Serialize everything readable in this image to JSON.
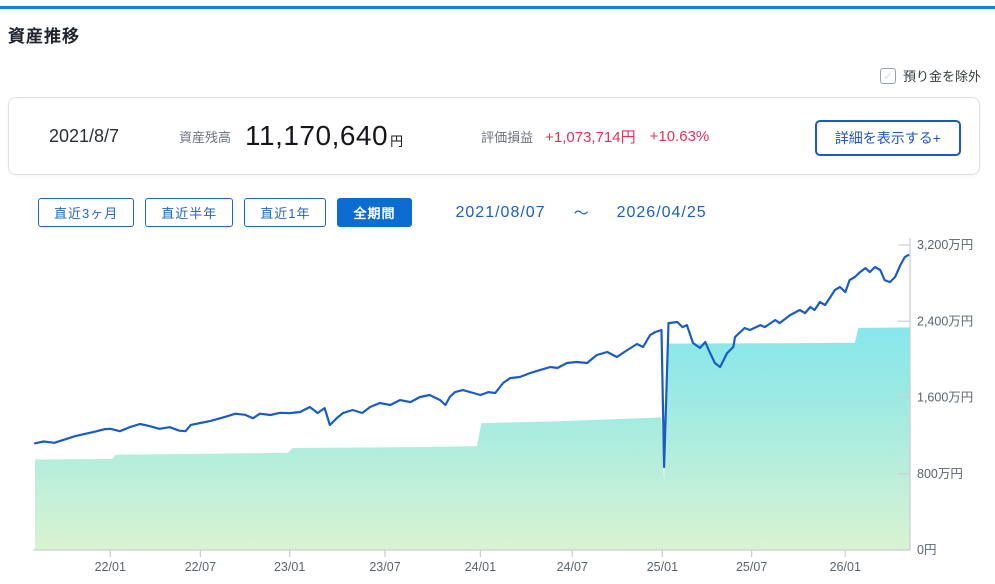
{
  "page": {
    "title": "資産推移"
  },
  "filter": {
    "label": "預り金を除外",
    "checked": false,
    "check_glyph": "✓"
  },
  "summary": {
    "date": "2021/8/7",
    "balance_label": "資産残高",
    "balance_value": "11,170,640",
    "balance_unit": "円",
    "pl_label": "評価損益",
    "pl_amount": "+1,073,714円",
    "pl_percent": "+10.63%",
    "detail_button_label": "詳細を表示する+"
  },
  "period": {
    "buttons": [
      {
        "label": "直近3ヶ月",
        "selected": false
      },
      {
        "label": "直近半年",
        "selected": false
      },
      {
        "label": "直近1年",
        "selected": false
      },
      {
        "label": "全期間",
        "selected": true
      }
    ],
    "range_start": "2021/08/07",
    "range_separator": "～",
    "range_end": "2026/04/25"
  },
  "colors": {
    "accent_blue": "#0d6cd0",
    "link_blue": "#1b5fc0",
    "loss_gain_red": "#e03358",
    "top_bar_blue": "#1f7fd4"
  },
  "chart_data": {
    "type": "area",
    "title": "資産推移",
    "xlabel": "",
    "ylabel": "円",
    "ylim": [
      0,
      3200
    ],
    "unit": "万円",
    "grid": false,
    "legend": "none",
    "style": {
      "line": "#1a5cc4",
      "area_top": "#74e3f7",
      "area_mid": "#96e9e4",
      "area_bottom": "#d9f3d2",
      "axis": "#c9cdd6",
      "tick_text": "#5a6470"
    },
    "x_ticks": [
      {
        "label": "22/01",
        "f": 0.086
      },
      {
        "label": "22/07",
        "f": 0.189
      },
      {
        "label": "23/01",
        "f": 0.291
      },
      {
        "label": "23/07",
        "f": 0.4
      },
      {
        "label": "24/01",
        "f": 0.509
      },
      {
        "label": "24/07",
        "f": 0.614
      },
      {
        "label": "25/01",
        "f": 0.717
      },
      {
        "label": "25/07",
        "f": 0.819
      },
      {
        "label": "26/01",
        "f": 0.926
      }
    ],
    "y_ticks": [
      {
        "label": "0円",
        "v": 0
      },
      {
        "label": "800万円",
        "v": 800
      },
      {
        "label": "1,600万円",
        "v": 1600
      },
      {
        "label": "2,400万円",
        "v": 2400
      },
      {
        "label": "3,200万円",
        "v": 3200
      }
    ],
    "series": [
      {
        "id": "asset_value_line",
        "points": [
          [
            0.0,
            1120
          ],
          [
            0.01,
            1138
          ],
          [
            0.022,
            1125
          ],
          [
            0.034,
            1160
          ],
          [
            0.046,
            1195
          ],
          [
            0.057,
            1218
          ],
          [
            0.069,
            1242
          ],
          [
            0.08,
            1268
          ],
          [
            0.086,
            1272
          ],
          [
            0.097,
            1246
          ],
          [
            0.109,
            1292
          ],
          [
            0.12,
            1322
          ],
          [
            0.131,
            1300
          ],
          [
            0.142,
            1272
          ],
          [
            0.154,
            1288
          ],
          [
            0.165,
            1252
          ],
          [
            0.172,
            1246
          ],
          [
            0.178,
            1312
          ],
          [
            0.189,
            1332
          ],
          [
            0.2,
            1352
          ],
          [
            0.217,
            1396
          ],
          [
            0.229,
            1430
          ],
          [
            0.24,
            1418
          ],
          [
            0.249,
            1382
          ],
          [
            0.257,
            1430
          ],
          [
            0.269,
            1416
          ],
          [
            0.28,
            1440
          ],
          [
            0.291,
            1436
          ],
          [
            0.303,
            1448
          ],
          [
            0.314,
            1500
          ],
          [
            0.323,
            1437
          ],
          [
            0.331,
            1489
          ],
          [
            0.337,
            1311
          ],
          [
            0.345,
            1385
          ],
          [
            0.352,
            1437
          ],
          [
            0.363,
            1469
          ],
          [
            0.374,
            1437
          ],
          [
            0.383,
            1500
          ],
          [
            0.394,
            1542
          ],
          [
            0.406,
            1521
          ],
          [
            0.417,
            1573
          ],
          [
            0.429,
            1552
          ],
          [
            0.44,
            1605
          ],
          [
            0.451,
            1626
          ],
          [
            0.463,
            1573
          ],
          [
            0.469,
            1521
          ],
          [
            0.474,
            1605
          ],
          [
            0.48,
            1657
          ],
          [
            0.489,
            1678
          ],
          [
            0.501,
            1647
          ],
          [
            0.509,
            1626
          ],
          [
            0.518,
            1657
          ],
          [
            0.526,
            1647
          ],
          [
            0.535,
            1752
          ],
          [
            0.543,
            1804
          ],
          [
            0.554,
            1815
          ],
          [
            0.566,
            1857
          ],
          [
            0.577,
            1888
          ],
          [
            0.589,
            1920
          ],
          [
            0.597,
            1909
          ],
          [
            0.608,
            1962
          ],
          [
            0.619,
            1972
          ],
          [
            0.631,
            1962
          ],
          [
            0.642,
            2046
          ],
          [
            0.654,
            2077
          ],
          [
            0.665,
            2025
          ],
          [
            0.677,
            2098
          ],
          [
            0.688,
            2161
          ],
          [
            0.695,
            2130
          ],
          [
            0.703,
            2255
          ],
          [
            0.709,
            2287
          ],
          [
            0.716,
            2308
          ],
          [
            0.719,
            871
          ],
          [
            0.724,
            2381
          ],
          [
            0.734,
            2392
          ],
          [
            0.74,
            2339
          ],
          [
            0.745,
            2360
          ],
          [
            0.752,
            2172
          ],
          [
            0.76,
            2119
          ],
          [
            0.766,
            2182
          ],
          [
            0.771,
            2077
          ],
          [
            0.777,
            1962
          ],
          [
            0.783,
            1920
          ],
          [
            0.791,
            2066
          ],
          [
            0.798,
            2130
          ],
          [
            0.8,
            2234
          ],
          [
            0.811,
            2329
          ],
          [
            0.817,
            2308
          ],
          [
            0.829,
            2360
          ],
          [
            0.834,
            2339
          ],
          [
            0.846,
            2413
          ],
          [
            0.851,
            2381
          ],
          [
            0.863,
            2465
          ],
          [
            0.874,
            2518
          ],
          [
            0.88,
            2486
          ],
          [
            0.886,
            2549
          ],
          [
            0.891,
            2518
          ],
          [
            0.897,
            2602
          ],
          [
            0.903,
            2570
          ],
          [
            0.909,
            2654
          ],
          [
            0.914,
            2727
          ],
          [
            0.92,
            2759
          ],
          [
            0.926,
            2706
          ],
          [
            0.931,
            2832
          ],
          [
            0.937,
            2864
          ],
          [
            0.943,
            2916
          ],
          [
            0.949,
            2958
          ],
          [
            0.954,
            2916
          ],
          [
            0.96,
            2969
          ],
          [
            0.966,
            2937
          ],
          [
            0.971,
            2832
          ],
          [
            0.977,
            2811
          ],
          [
            0.983,
            2864
          ],
          [
            0.989,
            2990
          ],
          [
            0.994,
            3073
          ],
          [
            0.998,
            3094
          ]
        ]
      },
      {
        "id": "principal_area",
        "points": [
          [
            0.0,
            950
          ],
          [
            0.088,
            955
          ],
          [
            0.092,
            1000
          ],
          [
            0.2,
            1010
          ],
          [
            0.289,
            1020
          ],
          [
            0.294,
            1070
          ],
          [
            0.44,
            1080
          ],
          [
            0.505,
            1090
          ],
          [
            0.51,
            1330
          ],
          [
            0.6,
            1350
          ],
          [
            0.713,
            1390
          ],
          [
            0.716,
            1390
          ],
          [
            0.719,
            700
          ],
          [
            0.722,
            2165
          ],
          [
            0.85,
            2170
          ],
          [
            0.937,
            2175
          ],
          [
            0.941,
            2330
          ],
          [
            1.0,
            2335
          ]
        ]
      }
    ]
  }
}
